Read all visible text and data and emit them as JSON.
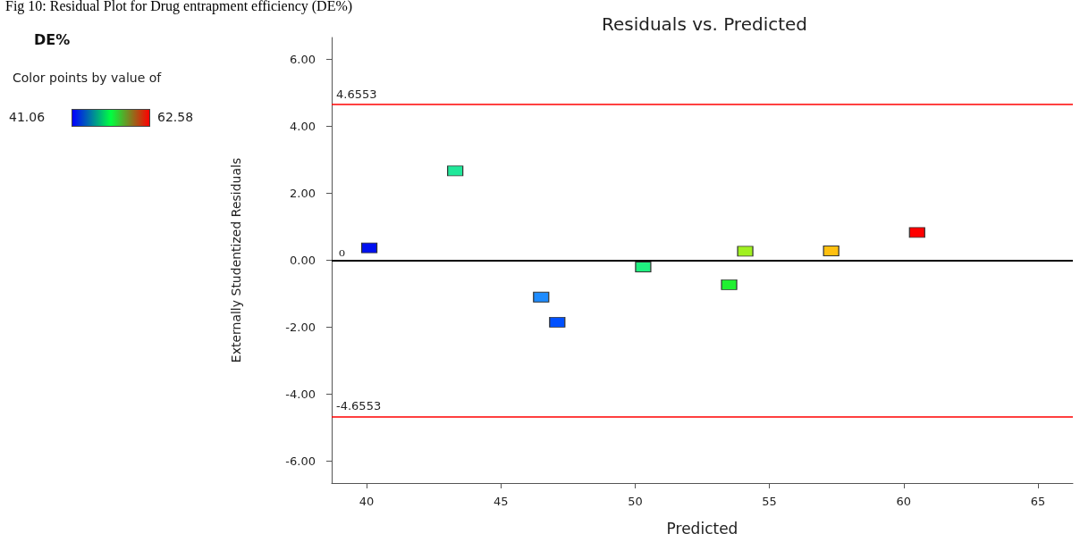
{
  "chart_data": {
    "type": "scatter",
    "title": "Residuals vs. Predicted",
    "xlabel": "Predicted",
    "ylabel": "Externally Studentized Residuals",
    "legend_title": "DE%",
    "clabel": "Color points by value of",
    "annotations": [
      "Fig 10: Residual Plot for Drug entrapment efficiency (DE%)",
      "o",
      "41.06",
      "62.58"
    ],
    "x": [
      40.1,
      43.3,
      46.5,
      47.1,
      50.3,
      53.5,
      54.1,
      57.3,
      60.5
    ],
    "values": [
      0.37,
      2.67,
      -1.1,
      -1.85,
      -0.2,
      -0.73,
      0.27,
      0.28,
      0.83
    ],
    "colors": [
      "#0010f0",
      "#20e89a",
      "#1e8cff",
      "#0050ff",
      "#20f080",
      "#20f030",
      "#a0f020",
      "#ffc010",
      "#ff0000"
    ],
    "xlim": [
      38.7,
      66.3
    ],
    "xticks": [
      40,
      45,
      50,
      55,
      60,
      65
    ],
    "ylim": [
      -6.65,
      6.65
    ],
    "yticks": [
      {
        "value": -6,
        "label": "-6.00"
      },
      {
        "value": -4,
        "label": "-4.00"
      },
      {
        "value": -2,
        "label": "-2.00"
      },
      {
        "value": 0,
        "label": "0.00"
      },
      {
        "value": 2,
        "label": "2.00"
      },
      {
        "value": 4,
        "label": "4.00"
      },
      {
        "value": 6,
        "label": "6.00"
      }
    ],
    "ref_lines": [
      {
        "axis": "y",
        "value": 4.6553,
        "label": "4.6553",
        "color": "#ff0000"
      },
      {
        "axis": "y",
        "value": -4.6553,
        "label": "-4.6553",
        "color": "#ff0000"
      },
      {
        "axis": "y",
        "value": 0,
        "color": "#000000"
      }
    ],
    "marker": "square",
    "grid": false
  }
}
